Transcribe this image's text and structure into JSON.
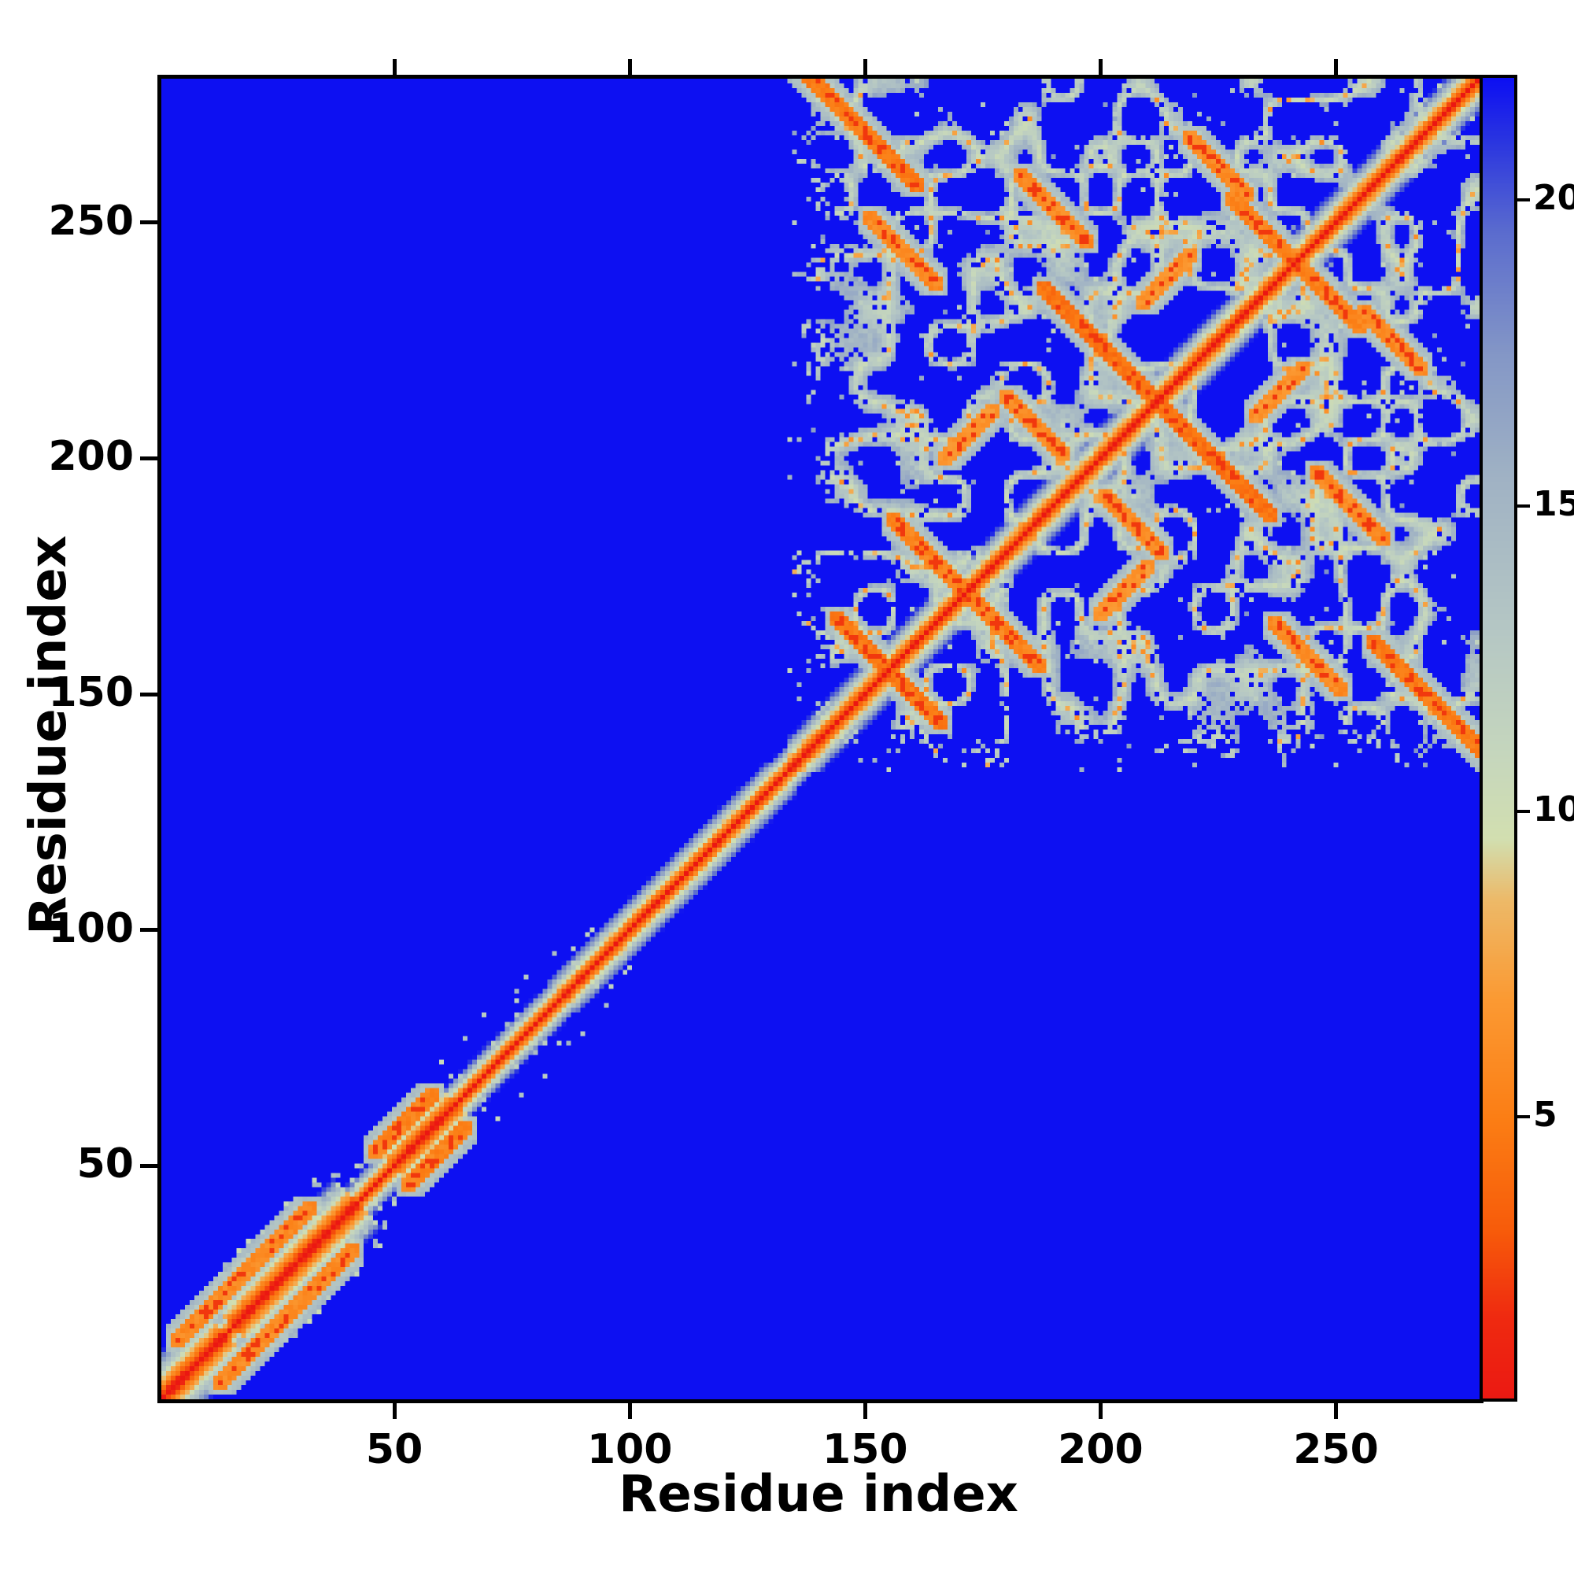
{
  "chart_data": {
    "type": "heatmap",
    "title": "",
    "xlabel": "Residue index",
    "ylabel": "Residue index",
    "axis_min": 1,
    "axis_max": 280,
    "x_ticks": [
      50,
      100,
      150,
      200,
      250
    ],
    "y_ticks": [
      50,
      100,
      150,
      200,
      250
    ],
    "colorbar": {
      "ticks": [
        5,
        10,
        15,
        20
      ],
      "vmin": 0.5,
      "vmax": 22
    },
    "colormap_stops": [
      {
        "v": 0.0,
        "c": "#ea1313"
      },
      {
        "v": 1.8,
        "c": "#ef2a10"
      },
      {
        "v": 3.2,
        "c": "#f75b0a"
      },
      {
        "v": 5.0,
        "c": "#fb7d14"
      },
      {
        "v": 7.0,
        "c": "#fb9a33"
      },
      {
        "v": 8.6,
        "c": "#edb968"
      },
      {
        "v": 9.6,
        "c": "#d2dfb0"
      },
      {
        "v": 11.0,
        "c": "#c5d6bd"
      },
      {
        "v": 13.0,
        "c": "#b5c7c4"
      },
      {
        "v": 15.5,
        "c": "#a0b2c4"
      },
      {
        "v": 17.5,
        "c": "#8497c6"
      },
      {
        "v": 19.5,
        "c": "#5b6cce"
      },
      {
        "v": 21.0,
        "c": "#2a35e0"
      },
      {
        "v": 21.8,
        "c": "#1317ef"
      },
      {
        "v": 22.0,
        "c": "#0d10f2"
      }
    ],
    "description": "Protein residue-residue distance map (280 x 280). Red main diagonal = zero/short distances, narrow near-diagonal contact band for residues ~1-135, dense folded-domain contact network with antiparallel (anti-diagonal) orange streaks for residues ~135-280. Uniform blue background = distances clipped above ~22.",
    "generator": {
      "n": 280,
      "background": 22,
      "base_scale": 3.6,
      "domain_scale": 3.0,
      "domain_start": 134,
      "scale_regions": [
        {
          "from": 1,
          "to": 14,
          "scale": 2.1
        },
        {
          "from": 16,
          "to": 42,
          "scale": 2.05
        },
        {
          "from": 50,
          "to": 63,
          "scale": 2.35
        },
        {
          "from": 86,
          "to": 132,
          "scale": 3.2
        }
      ],
      "parallel_helix_segments": [
        {
          "x": 18,
          "y": 27,
          "len": 14,
          "dir": 1,
          "v": 6.0
        },
        {
          "x": 52,
          "y": 59,
          "len": 6,
          "dir": 1,
          "v": 5.5
        }
      ],
      "domain_segments": [
        {
          "x": 148,
          "y": 271,
          "len": 13,
          "dir": -1,
          "v": 5.0
        },
        {
          "x": 158,
          "y": 244,
          "len": 7,
          "dir": -1,
          "v": 6.0
        },
        {
          "x": 166,
          "y": 177,
          "len": 10,
          "dir": -1,
          "v": 5.5
        },
        {
          "x": 203,
          "y": 221,
          "len": 15,
          "dir": -1,
          "v": 4.5
        },
        {
          "x": 236,
          "y": 247,
          "len": 8,
          "dir": -1,
          "v": 5.5
        },
        {
          "x": 150,
          "y": 160,
          "len": 6,
          "dir": -1,
          "v": 5.0
        },
        {
          "x": 190,
          "y": 253,
          "len": 7,
          "dir": -1,
          "v": 6.0
        },
        {
          "x": 172,
          "y": 205,
          "len": 5,
          "dir": 1,
          "v": 6.5
        },
        {
          "x": 225,
          "y": 262,
          "len": 6,
          "dir": -1,
          "v": 6.0
        },
        {
          "x": 186,
          "y": 207,
          "len": 6,
          "dir": -1,
          "v": 6.0
        },
        {
          "x": 214,
          "y": 238,
          "len": 5,
          "dir": 1,
          "v": 6.5
        }
      ],
      "mesh": {
        "cell": 8,
        "band": 0.14,
        "seed": 7
      },
      "speckle": {
        "p": 0.02,
        "seed": 13
      }
    }
  }
}
